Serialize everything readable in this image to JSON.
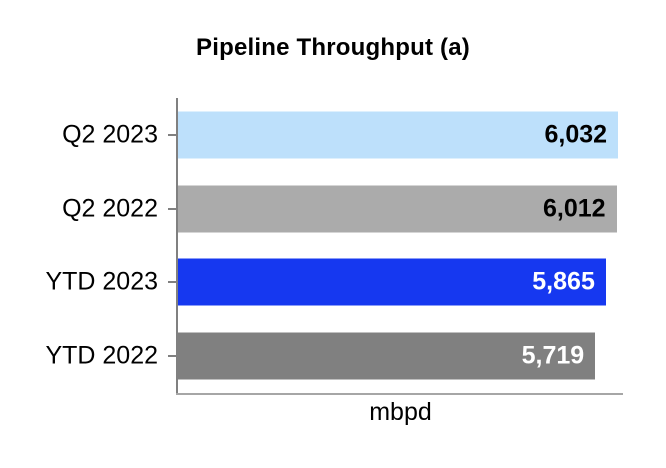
{
  "chart_data": {
    "type": "bar",
    "orientation": "horizontal",
    "title": "Pipeline Throughput (a)",
    "xlabel": "mbpd",
    "ylabel": "",
    "categories": [
      "Q2 2023",
      "Q2 2022",
      "YTD 2023",
      "YTD 2022"
    ],
    "values": [
      6032,
      6012,
      5865,
      5719
    ],
    "value_labels": [
      "6,032",
      "6,012",
      "5,865",
      "5,719"
    ],
    "bar_colors": [
      "#bde0fb",
      "#ababab",
      "#1638f0",
      "#808080"
    ],
    "value_label_colors": [
      "#000000",
      "#000000",
      "#ffffff",
      "#ffffff"
    ],
    "xlim": [
      0,
      6100
    ],
    "grid": false,
    "legend": false,
    "value_label_position": "inside-end"
  },
  "colors": {
    "y_axis_line": "#808080",
    "x_axis_line": "#a6a6a6",
    "background": "#ffffff",
    "title_text": "#000000"
  }
}
